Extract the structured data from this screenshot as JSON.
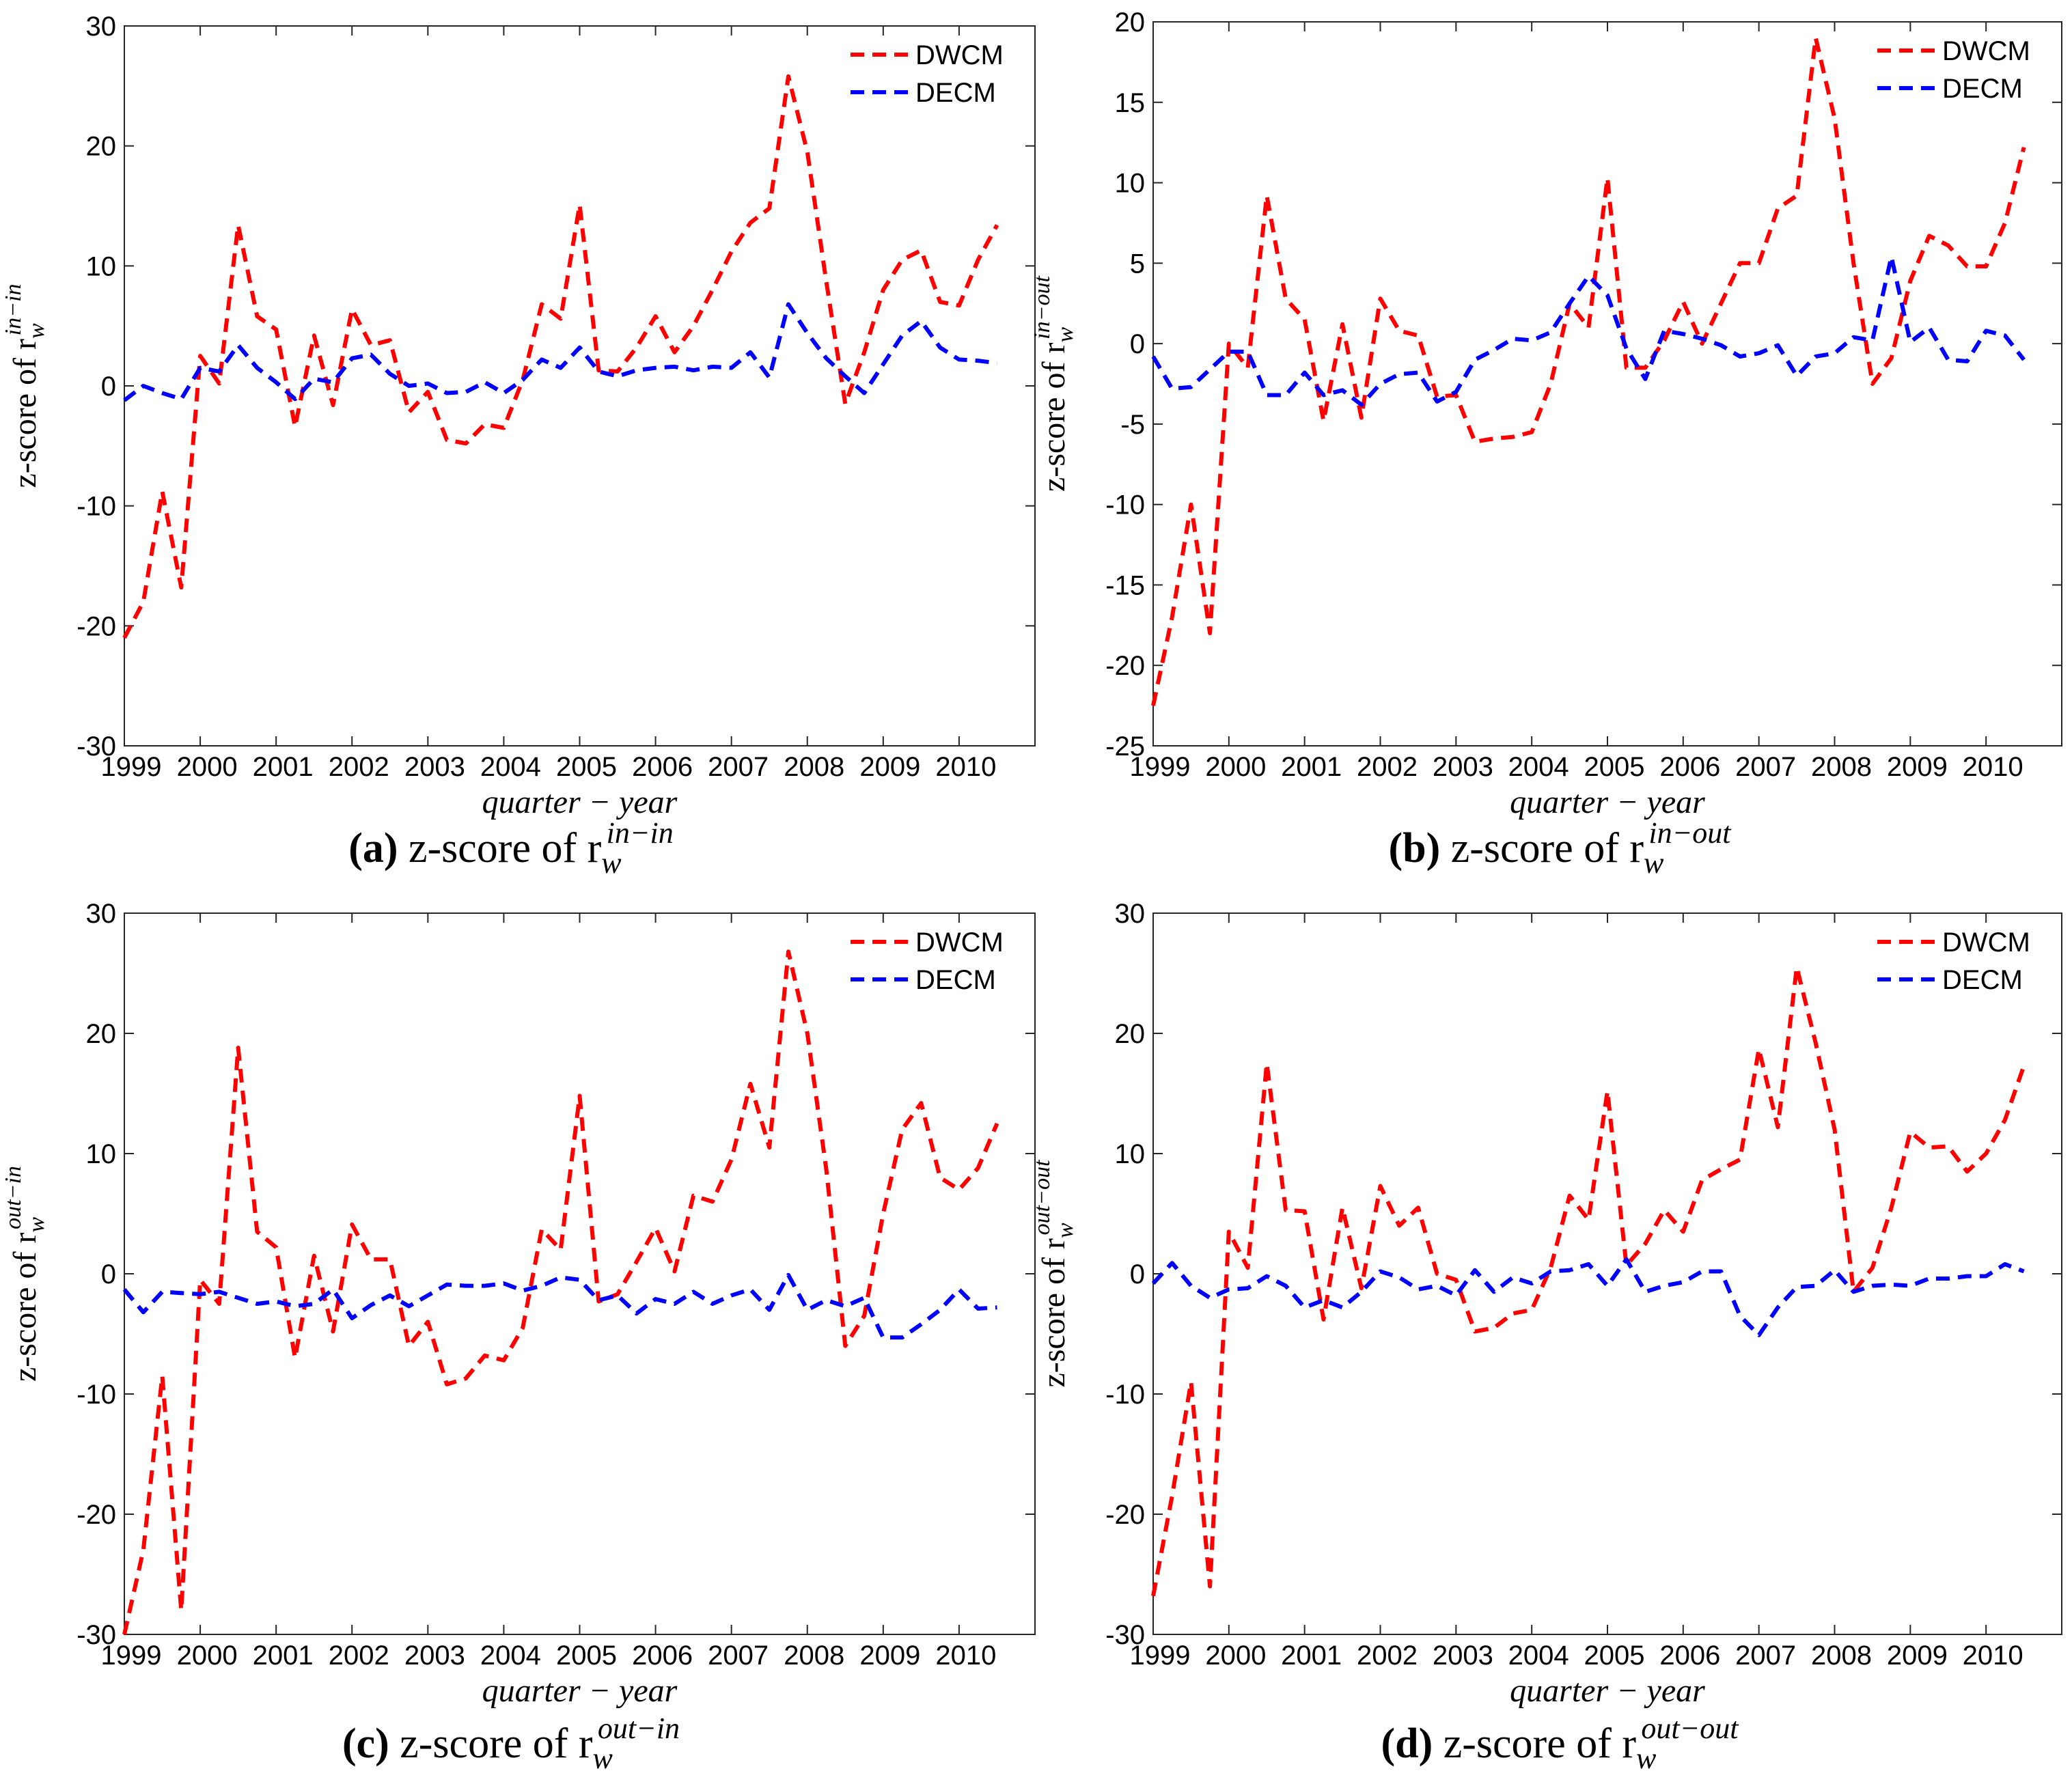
{
  "chart_data": [
    {
      "type": "line",
      "panel": "a",
      "caption_label": "(a)",
      "caption_text": "z-score of r",
      "caption_sub": "w",
      "caption_sup": "in−in",
      "ylabel": "z-score of r",
      "ylabel_sub": "w",
      "ylabel_sup": "in−in",
      "xlabel": "quarter − year",
      "ylim": [
        -30,
        30
      ],
      "yticks": [
        -30,
        -20,
        -10,
        0,
        10,
        20,
        30
      ],
      "xticks": [
        "1999",
        "2000",
        "2001",
        "2002",
        "2003",
        "2004",
        "2005",
        "2006",
        "2007",
        "2008",
        "2009",
        "2010"
      ],
      "xlim": [
        0,
        48
      ],
      "x": [
        0,
        1,
        2,
        3,
        4,
        5,
        6,
        7,
        8,
        9,
        10,
        11,
        12,
        13,
        14,
        15,
        16,
        17,
        18,
        19,
        20,
        21,
        22,
        23,
        24,
        25,
        26,
        27,
        28,
        29,
        30,
        31,
        32,
        33,
        34,
        35,
        36,
        37,
        38,
        39,
        40,
        41,
        42,
        43,
        44,
        45,
        46
      ],
      "series": [
        {
          "name": "DWCM",
          "color": "#ff0000",
          "values": [
            -21.0,
            -18.0,
            -8.8,
            -16.8,
            2.5,
            0.2,
            13.4,
            5.8,
            4.7,
            -3.4,
            4.2,
            -1.6,
            6.4,
            3.4,
            3.8,
            -2.2,
            -0.5,
            -4.5,
            -4.8,
            -3.2,
            -3.5,
            0.5,
            6.8,
            5.6,
            15.1,
            1.3,
            1.2,
            3.2,
            5.8,
            2.8,
            5.0,
            8.0,
            11.2,
            13.6,
            14.8,
            25.8,
            19.5,
            8.7,
            -1.5,
            2.8,
            8.0,
            10.5,
            11.3,
            7.0,
            6.7,
            10.5,
            13.4
          ]
        },
        {
          "name": "DECM",
          "color": "#0000ff",
          "values": [
            -1.2,
            0.0,
            -0.6,
            -1.1,
            1.5,
            1.2,
            3.4,
            1.5,
            0.3,
            -1.1,
            0.6,
            0.3,
            2.3,
            2.6,
            1.0,
            0.0,
            0.2,
            -0.6,
            -0.5,
            0.3,
            -0.6,
            0.5,
            2.2,
            1.5,
            3.2,
            1.2,
            0.8,
            1.3,
            1.5,
            1.6,
            1.3,
            1.6,
            1.5,
            2.8,
            0.7,
            6.8,
            4.4,
            2.3,
            0.8,
            -0.6,
            1.8,
            4.2,
            5.4,
            3.2,
            2.2,
            2.1,
            1.9
          ]
        }
      ]
    },
    {
      "type": "line",
      "panel": "b",
      "caption_label": "(b)",
      "caption_text": "z-score of r",
      "caption_sub": "w",
      "caption_sup": "in−out",
      "ylabel": "z-score of r",
      "ylabel_sub": "w",
      "ylabel_sup": "in−out",
      "xlabel": "quarter − year",
      "ylim": [
        -25,
        20
      ],
      "yticks": [
        -25,
        -20,
        -15,
        -10,
        -5,
        0,
        5,
        10,
        15,
        20
      ],
      "xticks": [
        "1999",
        "2000",
        "2001",
        "2002",
        "2003",
        "2004",
        "2005",
        "2006",
        "2007",
        "2008",
        "2009",
        "2010"
      ],
      "xlim": [
        0,
        48
      ],
      "x": [
        0,
        1,
        2,
        3,
        4,
        5,
        6,
        7,
        8,
        9,
        10,
        11,
        12,
        13,
        14,
        15,
        16,
        17,
        18,
        19,
        20,
        21,
        22,
        23,
        24,
        25,
        26,
        27,
        28,
        29,
        30,
        31,
        32,
        33,
        34,
        35,
        36,
        37,
        38,
        39,
        40,
        41,
        42,
        43,
        44,
        45,
        46
      ],
      "series": [
        {
          "name": "DWCM",
          "color": "#ff0000",
          "values": [
            -22.5,
            -17.0,
            -10.0,
            -18.0,
            0.0,
            -1.5,
            9.2,
            2.8,
            1.5,
            -4.8,
            1.2,
            -4.6,
            2.8,
            0.8,
            0.5,
            -3.3,
            -3.2,
            -6.1,
            -5.9,
            -5.8,
            -5.5,
            -2.5,
            2.5,
            1.0,
            10.3,
            -1.5,
            -1.5,
            0.2,
            2.6,
            0.0,
            2.5,
            5.0,
            5.0,
            8.4,
            9.2,
            19.0,
            14.0,
            5.0,
            -2.5,
            -0.9,
            3.9,
            6.7,
            6.1,
            4.8,
            4.8,
            7.5,
            12.2
          ]
        },
        {
          "name": "DECM",
          "color": "#0000ff",
          "values": [
            -0.8,
            -2.8,
            -2.7,
            -1.6,
            -0.5,
            -0.5,
            -3.2,
            -3.2,
            -1.8,
            -3.2,
            -2.9,
            -3.8,
            -2.5,
            -1.9,
            -1.8,
            -3.6,
            -3.0,
            -1.0,
            -0.4,
            0.3,
            0.2,
            0.7,
            2.5,
            4.2,
            3.0,
            -0.3,
            -2.2,
            0.8,
            0.6,
            0.3,
            -0.1,
            -0.8,
            -0.6,
            -0.1,
            -2.0,
            -0.8,
            -0.6,
            0.4,
            0.2,
            5.4,
            0.1,
            1.0,
            -1.0,
            -1.1,
            0.8,
            0.5,
            -1.0
          ]
        }
      ]
    },
    {
      "type": "line",
      "panel": "c",
      "caption_label": "(c)",
      "caption_text": "z-score of r",
      "caption_sub": "w",
      "caption_sup": "out−in",
      "ylabel": "z-score of r",
      "ylabel_sub": "w",
      "ylabel_sup": "out−in",
      "xlabel": "quarter − year",
      "ylim": [
        -30,
        30
      ],
      "yticks": [
        -30,
        -20,
        -10,
        0,
        10,
        20,
        30
      ],
      "xticks": [
        "1999",
        "2000",
        "2001",
        "2002",
        "2003",
        "2004",
        "2005",
        "2006",
        "2007",
        "2008",
        "2009",
        "2010"
      ],
      "xlim": [
        0,
        48
      ],
      "x": [
        0,
        1,
        2,
        3,
        4,
        5,
        6,
        7,
        8,
        9,
        10,
        11,
        12,
        13,
        14,
        15,
        16,
        17,
        18,
        19,
        20,
        21,
        22,
        23,
        24,
        25,
        26,
        27,
        28,
        29,
        30,
        31,
        32,
        33,
        34,
        35,
        36,
        37,
        38,
        39,
        40,
        41,
        42,
        43,
        44,
        45,
        46
      ],
      "series": [
        {
          "name": "DWCM",
          "color": "#ff0000",
          "values": [
            -30.0,
            -23.0,
            -8.5,
            -28.0,
            -0.5,
            -2.5,
            18.8,
            3.5,
            2.2,
            -7.0,
            1.5,
            -4.8,
            4.1,
            1.2,
            1.2,
            -6.0,
            -4.0,
            -9.2,
            -8.7,
            -6.8,
            -7.2,
            -4.5,
            3.7,
            2.0,
            14.8,
            -2.3,
            -1.7,
            1.0,
            3.8,
            0.2,
            6.5,
            6.0,
            9.5,
            15.8,
            10.5,
            26.8,
            20.0,
            8.7,
            -6.0,
            -3.5,
            5.0,
            12.0,
            14.2,
            8.0,
            7.0,
            8.8,
            12.5
          ]
        },
        {
          "name": "DECM",
          "color": "#0000ff",
          "values": [
            -1.3,
            -3.2,
            -1.5,
            -1.6,
            -1.7,
            -1.5,
            -2.0,
            -2.5,
            -2.3,
            -2.7,
            -2.5,
            -1.3,
            -3.7,
            -2.6,
            -1.8,
            -2.7,
            -1.8,
            -0.9,
            -1.0,
            -1.0,
            -0.8,
            -1.4,
            -1.0,
            -0.3,
            -0.5,
            -2.2,
            -1.8,
            -3.3,
            -2.1,
            -2.5,
            -1.5,
            -2.5,
            -1.8,
            -1.3,
            -3.0,
            -0.1,
            -3.0,
            -2.2,
            -2.7,
            -2.0,
            -5.3,
            -5.3,
            -4.2,
            -3.0,
            -1.3,
            -2.9,
            -2.8
          ]
        }
      ]
    },
    {
      "type": "line",
      "panel": "d",
      "caption_label": "(d)",
      "caption_text": "z-score of r",
      "caption_sub": "w",
      "caption_sup": "out−out",
      "ylabel": "z-score of r",
      "ylabel_sub": "w",
      "ylabel_sup": "out−out",
      "xlabel": "quarter − year",
      "ylim": [
        -30,
        30
      ],
      "yticks": [
        -30,
        -20,
        -10,
        0,
        10,
        20,
        30
      ],
      "xticks": [
        "1999",
        "2000",
        "2001",
        "2002",
        "2003",
        "2004",
        "2005",
        "2006",
        "2007",
        "2008",
        "2009",
        "2010"
      ],
      "xlim": [
        0,
        48
      ],
      "x": [
        0,
        1,
        2,
        3,
        4,
        5,
        6,
        7,
        8,
        9,
        10,
        11,
        12,
        13,
        14,
        15,
        16,
        17,
        18,
        19,
        20,
        21,
        22,
        23,
        24,
        25,
        26,
        27,
        28,
        29,
        30,
        31,
        32,
        33,
        34,
        35,
        36,
        37,
        38,
        39,
        40,
        41,
        42,
        43,
        44,
        45,
        46
      ],
      "series": [
        {
          "name": "DWCM",
          "color": "#ff0000",
          "values": [
            -26.8,
            -18.5,
            -9.0,
            -26.0,
            3.5,
            0.5,
            17.5,
            5.3,
            5.2,
            -3.8,
            5.5,
            -1.2,
            7.3,
            4.0,
            5.5,
            0.0,
            -0.5,
            -4.8,
            -4.5,
            -3.3,
            -3.0,
            0.5,
            6.5,
            4.5,
            15.2,
            0.7,
            2.5,
            5.3,
            3.5,
            7.8,
            8.7,
            9.5,
            18.7,
            12.2,
            25.5,
            19.2,
            12.0,
            -1.5,
            0.5,
            5.5,
            11.8,
            10.5,
            10.6,
            8.5,
            10.0,
            12.8,
            17.3
          ]
        },
        {
          "name": "DECM",
          "color": "#0000ff",
          "values": [
            -0.8,
            0.9,
            -1.0,
            -2.0,
            -1.3,
            -1.2,
            -0.2,
            -1.0,
            -2.8,
            -2.2,
            -2.8,
            -1.5,
            0.2,
            -0.3,
            -1.3,
            -1.0,
            -1.8,
            0.3,
            -1.5,
            -0.3,
            -0.8,
            0.2,
            0.3,
            0.8,
            -1.0,
            1.2,
            -1.5,
            -1.0,
            -0.7,
            0.2,
            0.2,
            -3.5,
            -5.1,
            -2.8,
            -1.1,
            -1.0,
            0.3,
            -1.5,
            -1.0,
            -0.9,
            -1.0,
            -0.4,
            -0.4,
            -0.2,
            -0.2,
            0.8,
            0.2
          ]
        }
      ]
    }
  ]
}
